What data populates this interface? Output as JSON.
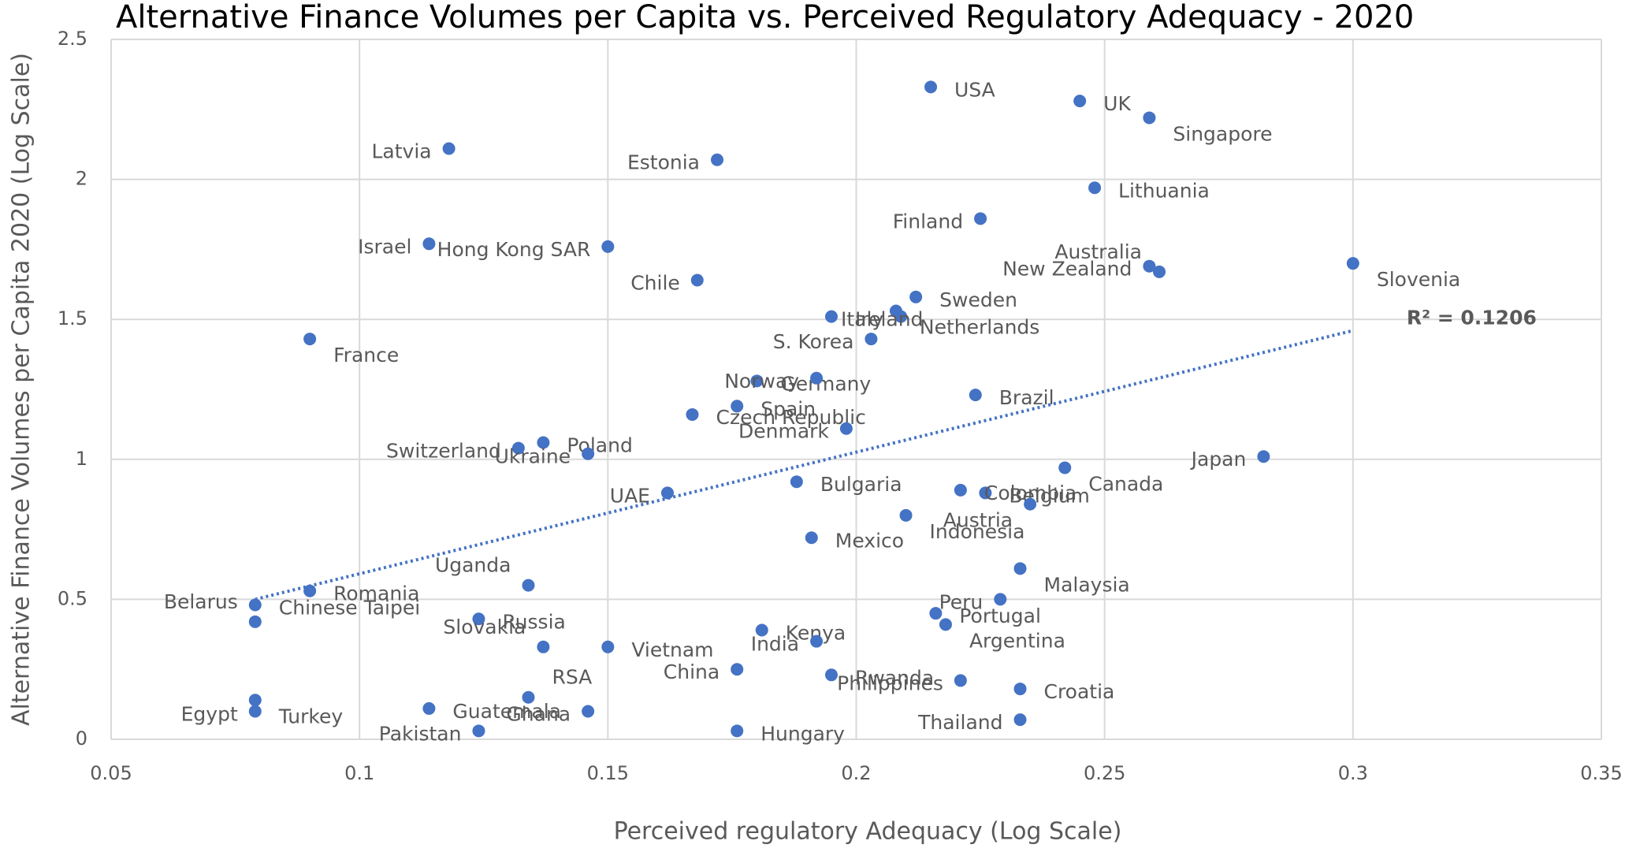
{
  "chart_data": {
    "type": "scatter",
    "title": "Alternative Finance Volumes per Capita vs. Perceived Regulatory Adequacy - 2020",
    "x_label": "Perceived regulatory Adequacy (Log Scale)",
    "y_label": "Alternative Finance Volumes per Capita 2020 (Log Scale)",
    "point_labels": [
      "USA",
      "UK",
      "Singapore",
      "Latvia",
      "Estonia",
      "Lithuania",
      "Finland",
      "Israel",
      "Hong Kong SAR",
      "Chile",
      "New Zealand",
      "Australia",
      "Slovenia",
      "Sweden",
      "Netherlands",
      "Italy",
      "Ireland",
      "S. Korea",
      "France",
      "Germany",
      "Norway",
      "Brazil",
      "Spain",
      "Czech Republic",
      "Denmark",
      "Poland",
      "Switzerland",
      "Ukraine",
      "Japan",
      "Canada",
      "Belgium",
      "Colombia",
      "Bulgaria",
      "UAE",
      "Austria",
      "Indonesia",
      "Mexico",
      "Malaysia",
      "Peru",
      "Chinese Taipei",
      "Romania",
      "Uganda",
      "Belarus",
      "Russia",
      "Portugal",
      "Argentina",
      "Kenya",
      "India",
      "Slovakia",
      "Vietnam",
      "China",
      "Rwanda",
      "Philippines",
      "Croatia",
      "Turkey",
      "RSA",
      "Guatemala",
      "Egypt",
      "Ghana",
      "Thailand",
      "Pakistan",
      "Hungary"
    ],
    "x": [
      0.215,
      0.245,
      0.259,
      0.118,
      0.172,
      0.248,
      0.225,
      0.114,
      0.15,
      0.168,
      0.259,
      0.261,
      0.3,
      0.212,
      0.208,
      0.209,
      0.195,
      0.203,
      0.09,
      0.18,
      0.192,
      0.224,
      0.176,
      0.167,
      0.198,
      0.137,
      0.132,
      0.146,
      0.282,
      0.242,
      0.226,
      0.221,
      0.188,
      0.162,
      0.235,
      0.21,
      0.191,
      0.233,
      0.229,
      0.079,
      0.09,
      0.134,
      0.079,
      0.124,
      0.216,
      0.218,
      0.181,
      0.192,
      0.137,
      0.15,
      0.176,
      0.195,
      0.221,
      0.233,
      0.079,
      0.134,
      0.114,
      0.079,
      0.146,
      0.233,
      0.124,
      0.176
    ],
    "values": [
      2.33,
      2.28,
      2.22,
      2.11,
      2.07,
      1.97,
      1.86,
      1.77,
      1.76,
      1.64,
      1.69,
      1.67,
      1.7,
      1.58,
      1.53,
      1.51,
      1.51,
      1.43,
      1.43,
      1.28,
      1.29,
      1.23,
      1.19,
      1.16,
      1.11,
      1.06,
      1.04,
      1.02,
      1.01,
      0.97,
      0.88,
      0.89,
      0.92,
      0.88,
      0.84,
      0.8,
      0.72,
      0.61,
      0.5,
      0.48,
      0.53,
      0.55,
      0.42,
      0.43,
      0.45,
      0.41,
      0.39,
      0.35,
      0.33,
      0.33,
      0.25,
      0.23,
      0.21,
      0.18,
      0.14,
      0.15,
      0.11,
      0.1,
      0.1,
      0.07,
      0.03,
      0.03
    ],
    "color": "#4472c4",
    "trendline": {
      "x": [
        0.079,
        0.3
      ],
      "values": [
        0.5,
        1.46
      ],
      "color": "#4472c4"
    },
    "annotation": "R² = 0.1206",
    "xlim": [
      0.05,
      0.35
    ],
    "xticks": [
      0.05,
      0.1,
      0.15,
      0.2,
      0.25,
      0.3,
      0.35
    ],
    "ylim": [
      0,
      2.5
    ],
    "yticks": [
      0,
      0.5,
      1,
      1.5,
      2,
      2.5
    ],
    "grid": true
  }
}
